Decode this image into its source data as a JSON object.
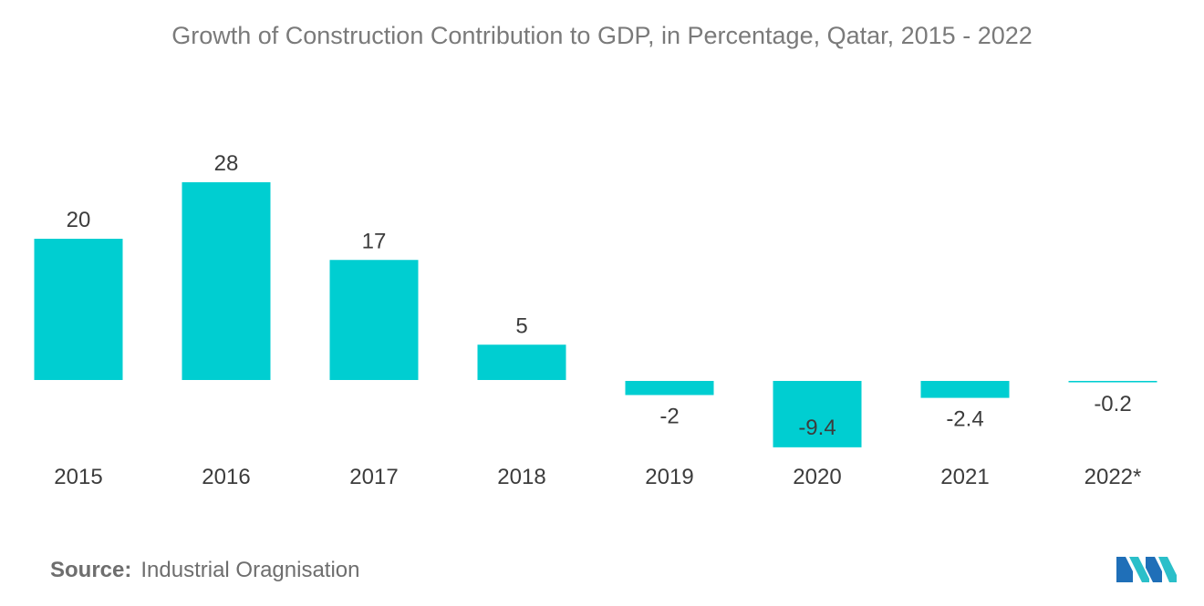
{
  "title": "Growth of Construction Contribution to GDP, in Percentage, Qatar, 2015 - 2022",
  "chart_data": {
    "type": "bar",
    "title": "Growth of Construction Contribution to GDP, in Percentage, Qatar, 2015 - 2022",
    "categories": [
      "2015",
      "2016",
      "2017",
      "2018",
      "2019",
      "2020",
      "2021",
      "2022*"
    ],
    "values": [
      20,
      28,
      17,
      5,
      -2,
      -9.4,
      -2.4,
      -0.2
    ],
    "data_labels": [
      "20",
      "28",
      "17",
      "5",
      "-2",
      "-9.4",
      "-2.4",
      "-0.2"
    ],
    "xlabel": "",
    "ylabel": "",
    "ylim": [
      -9.4,
      28
    ],
    "grid": false,
    "legend": "none",
    "bar_color": "#00ced1"
  },
  "source": {
    "label": "Source:",
    "text": "Industrial Oragnisation"
  },
  "logo": {
    "icon": "mordor-intelligence-logo-icon",
    "colors": [
      "#1f6fb8",
      "#2bbfc9"
    ]
  }
}
